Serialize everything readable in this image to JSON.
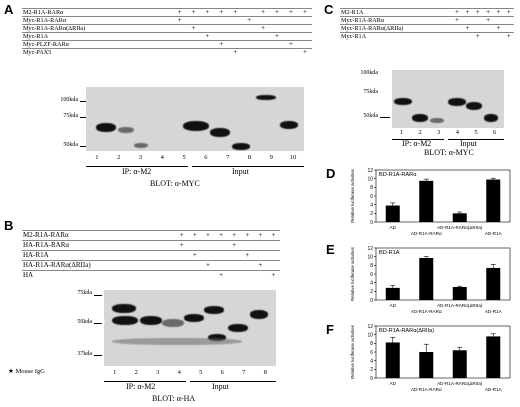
{
  "panels": {
    "A": {
      "letter": "A",
      "rows": [
        "M2-R1A-RARα",
        "Myc-R1A-RARα",
        "Myc-R1A-RARα(ΔRIIa)",
        "Myc-R1A",
        "Myc-PLZF-RARα",
        "Myc-PAX5"
      ],
      "marks": [
        [
          "+",
          "+",
          "+",
          "+",
          "+",
          "",
          "+",
          "+",
          "+",
          "+"
        ],
        [
          "+",
          "",
          "",
          "",
          "",
          "+",
          "",
          "",
          "",
          ""
        ],
        [
          "",
          "+",
          "",
          "",
          "",
          "",
          "+",
          "",
          "",
          ""
        ],
        [
          "",
          "",
          "+",
          "",
          "",
          "",
          "",
          "+",
          "",
          ""
        ],
        [
          "",
          "",
          "",
          "+",
          "",
          "",
          "",
          "",
          "+",
          ""
        ],
        [
          "",
          "",
          "",
          "",
          "+",
          "",
          "",
          "",
          "",
          "+"
        ]
      ],
      "mw": [
        "100kda",
        "75kda",
        "50kda"
      ],
      "lanes": [
        "1",
        "2",
        "3",
        "4",
        "5",
        "6",
        "7",
        "8",
        "9",
        "10"
      ],
      "ip": "IP: α-M2",
      "input": "Input",
      "blot": "BLOT: α-MYC"
    },
    "B": {
      "letter": "B",
      "rows": [
        "M2-R1A-RARα",
        "HA-R1A-RARα",
        "HA-R1A",
        "HA-R1A-RARα(ΔRIIa)",
        "HA"
      ],
      "marks": [
        [
          "+",
          "+",
          "+",
          "+",
          "+",
          "+",
          "+",
          "+"
        ],
        [
          "+",
          "",
          "",
          "",
          "+",
          "",
          "",
          ""
        ],
        [
          "",
          "+",
          "",
          "",
          "",
          "+",
          "",
          ""
        ],
        [
          "",
          "",
          "+",
          "",
          "",
          "",
          "+",
          ""
        ],
        [
          "",
          "",
          "",
          "+",
          "",
          "",
          "",
          "+"
        ]
      ],
      "mw": [
        "75kda",
        "50kda",
        "37kda"
      ],
      "lanes": [
        "1",
        "2",
        "3",
        "4",
        "5",
        "6",
        "7",
        "8"
      ],
      "ip": "IP: α-M2",
      "input": "Input",
      "blot": "BLOT: α-HA",
      "legend": "Mouse IgG"
    },
    "C": {
      "letter": "C",
      "rows": [
        "M2-R1A",
        "Myc-R1A-RARα",
        "Myc-R1A-RARα(ΔRIIa)",
        "Myc-R1A"
      ],
      "marks": [
        [
          "+",
          "+",
          "+",
          "+",
          "+",
          "+"
        ],
        [
          "+",
          "",
          "",
          "+",
          "",
          ""
        ],
        [
          "",
          "+",
          "",
          "",
          "+",
          ""
        ],
        [
          "",
          "",
          "+",
          "",
          "",
          "+"
        ]
      ],
      "mw": [
        "100kda",
        "75kda",
        "50kda"
      ],
      "lanes": [
        "1",
        "2",
        "3",
        "4",
        "5",
        "6"
      ],
      "ip": "IP: α-M2",
      "input": "Input",
      "blot": "BLOT: α-MYC"
    },
    "D": {
      "letter": "D"
    },
    "E": {
      "letter": "E"
    },
    "F": {
      "letter": "F"
    }
  },
  "chart_data": [
    {
      "type": "bar",
      "panel": "D",
      "title": "BD-R1A-RARα",
      "ylabel": "Relative luciferase activities",
      "categories": [
        "AD",
        "AD-R1A-RARα",
        "AD-R1A-RARα(ΔRIIa)",
        "AD-R1A"
      ],
      "values": [
        3.8,
        9.5,
        2.0,
        9.8
      ],
      "errors": [
        0.6,
        0.4,
        0.3,
        0.3
      ],
      "yticks": [
        0,
        2,
        4,
        6,
        8,
        10,
        12
      ],
      "ylim": [
        0,
        12
      ]
    },
    {
      "type": "bar",
      "panel": "E",
      "title": "BD-R1A",
      "ylabel": "Relative luciferase activities",
      "categories": [
        "AD",
        "AD-R1A-RARα",
        "AD-R1A-RARα(ΔRIIa)",
        "AD-R1A"
      ],
      "values": [
        2.8,
        9.7,
        3.0,
        7.4
      ],
      "errors": [
        0.5,
        0.3,
        0.2,
        0.8
      ],
      "yticks": [
        0,
        2,
        4,
        6,
        8,
        10,
        12
      ],
      "ylim": [
        0,
        12
      ]
    },
    {
      "type": "bar",
      "panel": "F",
      "title": "BD-R1A-RARα(ΔRIIa)",
      "ylabel": "Relative luciferase activities",
      "categories": [
        "AD",
        "AD-R1A-RARα",
        "AD-R1A-RARα(ΔRIIa)",
        "AD-R1A"
      ],
      "values": [
        8.2,
        6.0,
        6.4,
        9.6
      ],
      "errors": [
        1.2,
        1.8,
        0.7,
        0.6
      ],
      "yticks": [
        0,
        2,
        4,
        6,
        8,
        10,
        12
      ],
      "ylim": [
        0,
        12
      ]
    }
  ]
}
